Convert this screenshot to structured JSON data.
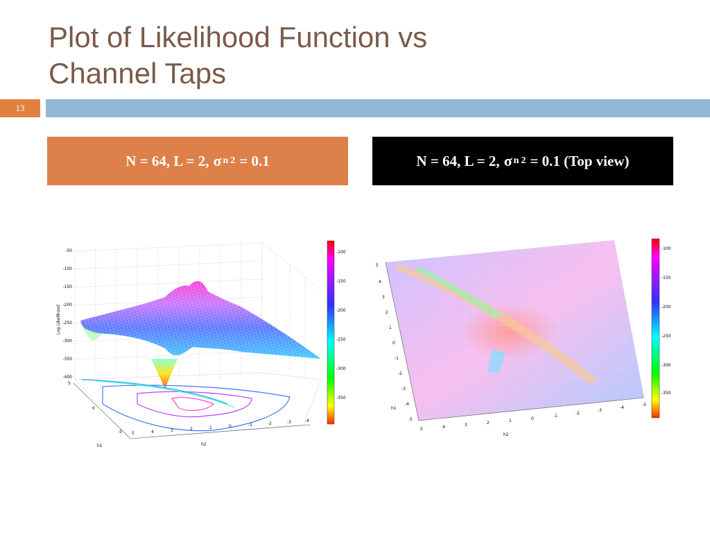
{
  "slide": {
    "title_line1": "Plot of Likelihood Function vs",
    "title_line2": "Channel Taps",
    "slide_number": "13",
    "colors": {
      "title": "#7a5a49",
      "accent_orange": "#dd8049",
      "band_blue": "#93b8d6"
    }
  },
  "captions": {
    "left": {
      "prefix": "N = 64, L = 2,",
      "sigma": "σ",
      "sub": "n",
      "sup": "2",
      "suffix": "= 0.1"
    },
    "right": {
      "prefix": "N = 64, L = 2,",
      "sigma": "σ",
      "sub": "n",
      "sup": "2",
      "suffix": "= 0.1 (Top view)"
    }
  },
  "plot3d": {
    "zlabel": "Log Likelihood",
    "xlabel": "h2",
    "ylabel": "h1",
    "zticks": [
      "-50",
      "-100",
      "-150",
      "-200",
      "-250",
      "-300",
      "-350",
      "-400"
    ],
    "h2ticks": [
      "5",
      "4",
      "3",
      "2",
      "1",
      "0",
      "-1",
      "-2",
      "-3",
      "-4"
    ],
    "h1ticks": [
      "5",
      "0",
      "-5"
    ],
    "colorbar_ticks": [
      "-100",
      "-150",
      "-200",
      "-250",
      "-300",
      "-350"
    ]
  },
  "plottop": {
    "xlabel": "h2",
    "ylabel": "h1",
    "h1ticks": [
      "5",
      "4",
      "3",
      "2",
      "1",
      "0",
      "-1",
      "-2",
      "-3",
      "-4",
      "-5"
    ],
    "h2ticks": [
      "5",
      "4",
      "3",
      "2",
      "1",
      "0",
      "-1",
      "-2",
      "-3",
      "-4",
      "-5"
    ],
    "colorbar_ticks": [
      "-100",
      "-150",
      "-200",
      "-250",
      "-300",
      "-350"
    ]
  }
}
